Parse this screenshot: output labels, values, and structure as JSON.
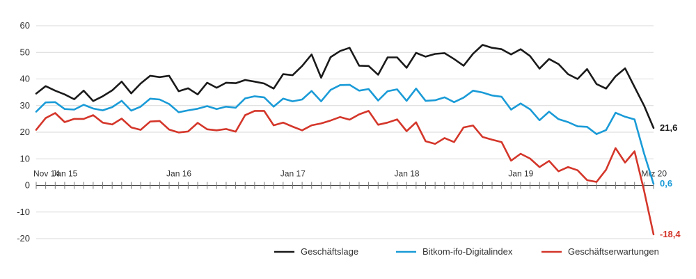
{
  "chart_data": {
    "type": "line",
    "y_ticks": [
      60,
      50,
      40,
      30,
      20,
      10,
      0,
      -10,
      -20
    ],
    "y_tick_labels": [
      "60",
      "50",
      "40",
      "30",
      "20",
      "10",
      "0",
      "-10",
      "-20"
    ],
    "ylim": [
      -20,
      60
    ],
    "grid": true,
    "legend_position": "bottom-right",
    "x_labels": [
      {
        "index": 0,
        "label": "Nov 14"
      },
      {
        "index": 2,
        "label": "Jan 15"
      },
      {
        "index": 14,
        "label": "Jan 16"
      },
      {
        "index": 26,
        "label": "Jan 17"
      },
      {
        "index": 38,
        "label": "Jan 18"
      },
      {
        "index": 50,
        "label": "Jan 19"
      },
      {
        "index": 64,
        "label": "Mrz 20"
      }
    ],
    "x": [
      "2014-11",
      "2014-12",
      "2015-01",
      "2015-02",
      "2015-03",
      "2015-04",
      "2015-05",
      "2015-06",
      "2015-07",
      "2015-08",
      "2015-09",
      "2015-10",
      "2015-11",
      "2015-12",
      "2016-01",
      "2016-02",
      "2016-03",
      "2016-04",
      "2016-05",
      "2016-06",
      "2016-07",
      "2016-08",
      "2016-09",
      "2016-10",
      "2016-11",
      "2016-12",
      "2017-01",
      "2017-02",
      "2017-03",
      "2017-04",
      "2017-05",
      "2017-06",
      "2017-07",
      "2017-08",
      "2017-09",
      "2017-10",
      "2017-11",
      "2017-12",
      "2018-01",
      "2018-02",
      "2018-03",
      "2018-04",
      "2018-05",
      "2018-06",
      "2018-07",
      "2018-08",
      "2018-09",
      "2018-10",
      "2018-11",
      "2018-12",
      "2019-01",
      "2019-02",
      "2019-03",
      "2019-04",
      "2019-05",
      "2019-06",
      "2019-07",
      "2019-08",
      "2019-09",
      "2019-10",
      "2019-11",
      "2019-12",
      "2020-01",
      "2020-02",
      "2020-03",
      "2020-04"
    ],
    "series": [
      {
        "name": "Geschäftslage",
        "color": "#1a1a1a",
        "end_label": "21,6",
        "values": [
          34.5,
          37.3,
          35.6,
          34.2,
          32.4,
          35.6,
          31.7,
          33.5,
          35.7,
          39.0,
          34.6,
          38.3,
          41.2,
          40.7,
          41.2,
          35.4,
          36.5,
          34.2,
          38.6,
          36.7,
          38.6,
          38.4,
          39.6,
          39.0,
          38.3,
          36.4,
          41.8,
          41.4,
          44.9,
          49.2,
          40.5,
          48.2,
          50.5,
          51.7,
          45.0,
          44.9,
          41.6,
          48.1,
          48.1,
          44.2,
          49.8,
          48.4,
          49.4,
          49.7,
          47.5,
          45.0,
          49.5,
          52.8,
          51.7,
          51.2,
          49.2,
          51.2,
          48.6,
          43.9,
          47.5,
          45.6,
          41.8,
          40.0,
          43.7,
          38.1,
          36.4,
          41.0,
          44.0,
          37.0,
          30.0,
          21.6
        ]
      },
      {
        "name": "Bitkom-ifo-Digitalindex",
        "color": "#1a9bd7",
        "end_label": "0,6",
        "values": [
          27.7,
          31.2,
          31.3,
          28.7,
          28.5,
          30.3,
          28.9,
          28.2,
          29.4,
          31.8,
          28.1,
          29.6,
          32.6,
          32.3,
          30.6,
          27.5,
          28.2,
          28.8,
          29.8,
          28.7,
          29.6,
          29.2,
          32.7,
          33.5,
          33.1,
          29.6,
          32.6,
          31.6,
          32.3,
          35.5,
          31.6,
          35.9,
          37.7,
          37.8,
          35.6,
          36.2,
          31.9,
          35.4,
          36.1,
          31.8,
          36.4,
          31.8,
          32.0,
          33.1,
          31.3,
          33.0,
          35.6,
          34.9,
          33.8,
          33.3,
          28.5,
          30.8,
          28.6,
          24.5,
          27.7,
          24.9,
          23.8,
          22.2,
          22.0,
          19.3,
          20.8,
          27.3,
          25.8,
          24.8,
          12.0,
          0.6
        ]
      },
      {
        "name": "Geschäftserwartungen",
        "color": "#d4362a",
        "end_label": "-18,4",
        "values": [
          20.9,
          25.3,
          27.2,
          23.8,
          25.0,
          25.0,
          26.4,
          23.6,
          22.9,
          25.1,
          21.8,
          20.9,
          24.0,
          24.2,
          21.0,
          19.9,
          20.3,
          23.5,
          21.1,
          20.7,
          21.2,
          20.2,
          26.4,
          28.0,
          28.0,
          22.6,
          23.6,
          22.1,
          20.7,
          22.6,
          23.3,
          24.4,
          25.7,
          24.7,
          26.7,
          28.0,
          22.8,
          23.6,
          24.8,
          20.4,
          23.7,
          16.6,
          15.6,
          17.8,
          16.3,
          21.8,
          22.5,
          18.2,
          17.2,
          16.3,
          9.3,
          11.9,
          10.1,
          6.9,
          9.2,
          5.3,
          6.9,
          5.7,
          2.0,
          1.3,
          5.9,
          14.0,
          8.6,
          12.8,
          -2.0,
          -18.4
        ]
      }
    ]
  }
}
